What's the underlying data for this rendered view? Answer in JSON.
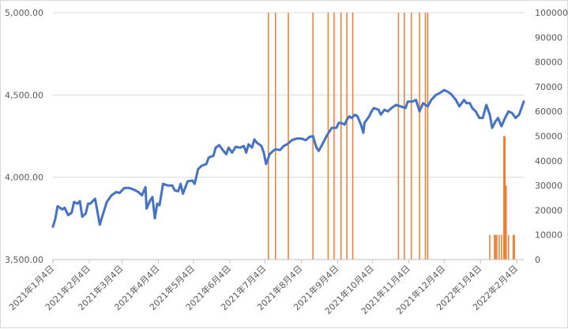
{
  "chart_data": {
    "type": "line+bar",
    "title": "",
    "xlabel": "",
    "ylabel_left": "",
    "ylabel_right": "",
    "grid": "horizontal",
    "legend": "none",
    "x_range": [
      "2021-01-04",
      "2022-02-10"
    ],
    "y_left": {
      "range": [
        3500,
        5000
      ],
      "ticks": [
        "3,500.00",
        "4,000.00",
        "4,500.00",
        "5,000.00"
      ],
      "tick_values": [
        3500,
        4000,
        4500,
        5000
      ]
    },
    "y_right": {
      "range": [
        0,
        100000
      ],
      "ticks": [
        "0",
        "10000",
        "20000",
        "30000",
        "40000",
        "50000",
        "60000",
        "70000",
        "80000",
        "90000",
        "100000"
      ],
      "tick_values": [
        0,
        10000,
        20000,
        30000,
        40000,
        50000,
        60000,
        70000,
        80000,
        90000,
        100000
      ]
    },
    "x_ticks": [
      {
        "label": "2021年1月4日",
        "date": "2021-01-04"
      },
      {
        "label": "2021年2月4日",
        "date": "2021-02-04"
      },
      {
        "label": "2021年3月4日",
        "date": "2021-03-04"
      },
      {
        "label": "2021年4月4日",
        "date": "2021-04-04"
      },
      {
        "label": "2021年5月4日",
        "date": "2021-05-04"
      },
      {
        "label": "2021年6月4日",
        "date": "2021-06-04"
      },
      {
        "label": "2021年7月4日",
        "date": "2021-07-04"
      },
      {
        "label": "2021年8月4日",
        "date": "2021-08-04"
      },
      {
        "label": "2021年9月4日",
        "date": "2021-09-04"
      },
      {
        "label": "2021年10月4日",
        "date": "2021-10-04"
      },
      {
        "label": "2021年11月4日",
        "date": "2021-11-04"
      },
      {
        "label": "2021年12月4日",
        "date": "2021-12-04"
      },
      {
        "label": "2022年1月4日",
        "date": "2022-01-04"
      },
      {
        "label": "2022年2月4日",
        "date": "2022-02-04"
      }
    ],
    "series": [
      {
        "type": "line",
        "axis": "left",
        "color": "#4472c4",
        "points": [
          [
            "2021-01-04",
            3700
          ],
          [
            "2021-01-06",
            3748
          ],
          [
            "2021-01-08",
            3824
          ],
          [
            "2021-01-12",
            3805
          ],
          [
            "2021-01-14",
            3815
          ],
          [
            "2021-01-17",
            3770
          ],
          [
            "2021-01-20",
            3785
          ],
          [
            "2021-01-22",
            3850
          ],
          [
            "2021-01-25",
            3840
          ],
          [
            "2021-01-27",
            3855
          ],
          [
            "2021-01-29",
            3760
          ],
          [
            "2021-02-01",
            3780
          ],
          [
            "2021-02-03",
            3840
          ],
          [
            "2021-02-05",
            3840
          ],
          [
            "2021-02-09",
            3870
          ],
          [
            "2021-02-13",
            3712
          ],
          [
            "2021-02-15",
            3760
          ],
          [
            "2021-02-19",
            3850
          ],
          [
            "2021-02-23",
            3890
          ],
          [
            "2021-02-27",
            3910
          ],
          [
            "2021-03-02",
            3905
          ],
          [
            "2021-03-06",
            3935
          ],
          [
            "2021-03-10",
            3935
          ],
          [
            "2021-03-14",
            3925
          ],
          [
            "2021-03-18",
            3910
          ],
          [
            "2021-03-21",
            3890
          ],
          [
            "2021-03-24",
            3940
          ],
          [
            "2021-03-25",
            3810
          ],
          [
            "2021-03-28",
            3860
          ],
          [
            "2021-03-30",
            3880
          ],
          [
            "2021-04-01",
            3750
          ],
          [
            "2021-04-03",
            3840
          ],
          [
            "2021-04-05",
            3830
          ],
          [
            "2021-04-08",
            3960
          ],
          [
            "2021-04-12",
            3950
          ],
          [
            "2021-04-16",
            3950
          ],
          [
            "2021-04-18",
            3920
          ],
          [
            "2021-04-21",
            3915
          ],
          [
            "2021-04-23",
            3960
          ],
          [
            "2021-04-25",
            3900
          ],
          [
            "2021-04-29",
            3975
          ],
          [
            "2021-05-03",
            3980
          ],
          [
            "2021-05-05",
            3960
          ],
          [
            "2021-05-08",
            4050
          ],
          [
            "2021-05-11",
            4070
          ],
          [
            "2021-05-15",
            4080
          ],
          [
            "2021-05-17",
            4120
          ],
          [
            "2021-05-19",
            4125
          ],
          [
            "2021-05-21",
            4130
          ],
          [
            "2021-05-23",
            4180
          ],
          [
            "2021-05-26",
            4195
          ],
          [
            "2021-05-29",
            4165
          ],
          [
            "2021-06-01",
            4140
          ],
          [
            "2021-06-03",
            4180
          ],
          [
            "2021-06-06",
            4150
          ],
          [
            "2021-06-09",
            4185
          ],
          [
            "2021-06-13",
            4180
          ],
          [
            "2021-06-16",
            4190
          ],
          [
            "2021-06-18",
            4150
          ],
          [
            "2021-06-20",
            4200
          ],
          [
            "2021-06-23",
            4180
          ],
          [
            "2021-06-25",
            4230
          ],
          [
            "2021-06-27",
            4210
          ],
          [
            "2021-07-01",
            4190
          ],
          [
            "2021-07-03",
            4150
          ],
          [
            "2021-07-05",
            4080
          ],
          [
            "2021-07-08",
            4140
          ],
          [
            "2021-07-11",
            4160
          ],
          [
            "2021-07-13",
            4170
          ],
          [
            "2021-07-17",
            4165
          ],
          [
            "2021-07-20",
            4190
          ],
          [
            "2021-07-23",
            4200
          ],
          [
            "2021-07-27",
            4225
          ],
          [
            "2021-07-31",
            4235
          ],
          [
            "2021-08-04",
            4235
          ],
          [
            "2021-08-08",
            4225
          ],
          [
            "2021-08-11",
            4245
          ],
          [
            "2021-08-14",
            4250
          ],
          [
            "2021-08-17",
            4180
          ],
          [
            "2021-08-19",
            4160
          ],
          [
            "2021-08-22",
            4200
          ],
          [
            "2021-08-26",
            4255
          ],
          [
            "2021-08-30",
            4300
          ],
          [
            "2021-09-03",
            4300
          ],
          [
            "2021-09-05",
            4330
          ],
          [
            "2021-09-07",
            4330
          ],
          [
            "2021-09-10",
            4320
          ],
          [
            "2021-09-12",
            4350
          ],
          [
            "2021-09-14",
            4370
          ],
          [
            "2021-09-16",
            4360
          ],
          [
            "2021-09-19",
            4380
          ],
          [
            "2021-09-21",
            4370
          ],
          [
            "2021-09-24",
            4320
          ],
          [
            "2021-09-26",
            4270
          ],
          [
            "2021-09-27",
            4330
          ],
          [
            "2021-10-01",
            4370
          ],
          [
            "2021-10-03",
            4400
          ],
          [
            "2021-10-05",
            4420
          ],
          [
            "2021-10-09",
            4410
          ],
          [
            "2021-10-11",
            4380
          ],
          [
            "2021-10-14",
            4410
          ],
          [
            "2021-10-17",
            4400
          ],
          [
            "2021-10-20",
            4420
          ],
          [
            "2021-10-24",
            4440
          ],
          [
            "2021-10-28",
            4430
          ],
          [
            "2021-11-01",
            4420
          ],
          [
            "2021-11-03",
            4460
          ],
          [
            "2021-11-07",
            4460
          ],
          [
            "2021-11-10",
            4470
          ],
          [
            "2021-11-13",
            4400
          ],
          [
            "2021-11-16",
            4450
          ],
          [
            "2021-11-20",
            4430
          ],
          [
            "2021-11-23",
            4470
          ],
          [
            "2021-11-27",
            4500
          ],
          [
            "2021-11-30",
            4510
          ],
          [
            "2021-12-04",
            4530
          ],
          [
            "2021-12-07",
            4520
          ],
          [
            "2021-12-10",
            4505
          ],
          [
            "2021-12-14",
            4470
          ],
          [
            "2021-12-17",
            4430
          ],
          [
            "2021-12-21",
            4470
          ],
          [
            "2021-12-23",
            4450
          ],
          [
            "2021-12-26",
            4450
          ],
          [
            "2021-12-28",
            4420
          ],
          [
            "2021-12-31",
            4400
          ],
          [
            "2022-01-03",
            4360
          ],
          [
            "2022-01-06",
            4360
          ],
          [
            "2022-01-09",
            4440
          ],
          [
            "2022-01-12",
            4380
          ],
          [
            "2022-01-14",
            4300
          ],
          [
            "2022-01-17",
            4340
          ],
          [
            "2022-01-19",
            4360
          ],
          [
            "2022-01-22",
            4310
          ],
          [
            "2022-01-25",
            4360
          ],
          [
            "2022-01-28",
            4400
          ],
          [
            "2022-01-31",
            4390
          ],
          [
            "2022-02-03",
            4360
          ],
          [
            "2022-02-06",
            4380
          ],
          [
            "2022-02-10",
            4460
          ]
        ]
      },
      {
        "type": "bar",
        "axis": "right",
        "color": "#ed7d31",
        "bars": [
          [
            "2021-07-07",
            100000
          ],
          [
            "2021-07-13",
            100000
          ],
          [
            "2021-07-24",
            100000
          ],
          [
            "2021-08-14",
            100000
          ],
          [
            "2021-08-27",
            100000
          ],
          [
            "2021-09-01",
            100000
          ],
          [
            "2021-09-07",
            100000
          ],
          [
            "2021-09-12",
            100000
          ],
          [
            "2021-09-17",
            100000
          ],
          [
            "2021-10-26",
            100000
          ],
          [
            "2021-10-31",
            100000
          ],
          [
            "2021-11-06",
            100000
          ],
          [
            "2021-11-13",
            100000
          ],
          [
            "2021-11-18",
            100000
          ],
          [
            "2021-11-20",
            100000
          ],
          [
            "2022-01-12",
            10000
          ],
          [
            "2022-01-16",
            10000
          ],
          [
            "2022-01-17",
            10000
          ],
          [
            "2022-01-18",
            10000
          ],
          [
            "2022-01-20",
            10000
          ],
          [
            "2022-01-22",
            10000
          ],
          [
            "2022-01-24",
            50000
          ],
          [
            "2022-01-25",
            50000
          ],
          [
            "2022-01-26",
            30000
          ],
          [
            "2022-01-28",
            10000
          ],
          [
            "2022-02-01",
            10000
          ],
          [
            "2022-02-02",
            10000
          ]
        ]
      }
    ]
  }
}
